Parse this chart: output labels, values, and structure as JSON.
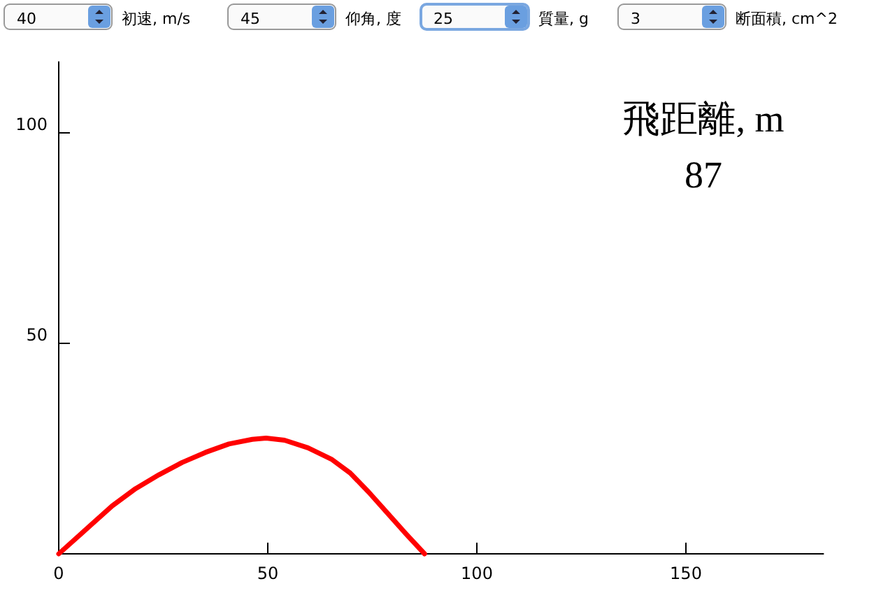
{
  "chart_data": {
    "type": "line",
    "annotations": [
      "40",
      "初速, m/s",
      "45",
      "仰角, 度",
      "25",
      "質量, g",
      "3",
      "断面積,  cm^2",
      "飛距離, m",
      "87"
    ],
    "x": [
      0,
      7.2,
      12.8,
      18.4,
      24.0,
      29.5,
      35.1,
      40.7,
      46.3,
      49.6,
      54.0,
      59.6,
      65.2,
      69.7,
      74.1,
      78.6,
      83.0,
      87.5
    ],
    "series": [
      {
        "color": "#ff0000",
        "values": [
          0,
          6.4,
          11.4,
          15.5,
          18.8,
          21.7,
          24.1,
          26.1,
          27.2,
          27.5,
          27.0,
          25.2,
          22.5,
          19.2,
          14.7,
          9.7,
          4.8,
          0
        ]
      }
    ],
    "xlim": [
      0,
      183
    ],
    "ylim": [
      0,
      117
    ],
    "xticks": [
      0,
      50,
      100,
      150
    ],
    "yticks": [
      50,
      100
    ],
    "grid": false,
    "marker": "none",
    "line_style": "solid"
  }
}
